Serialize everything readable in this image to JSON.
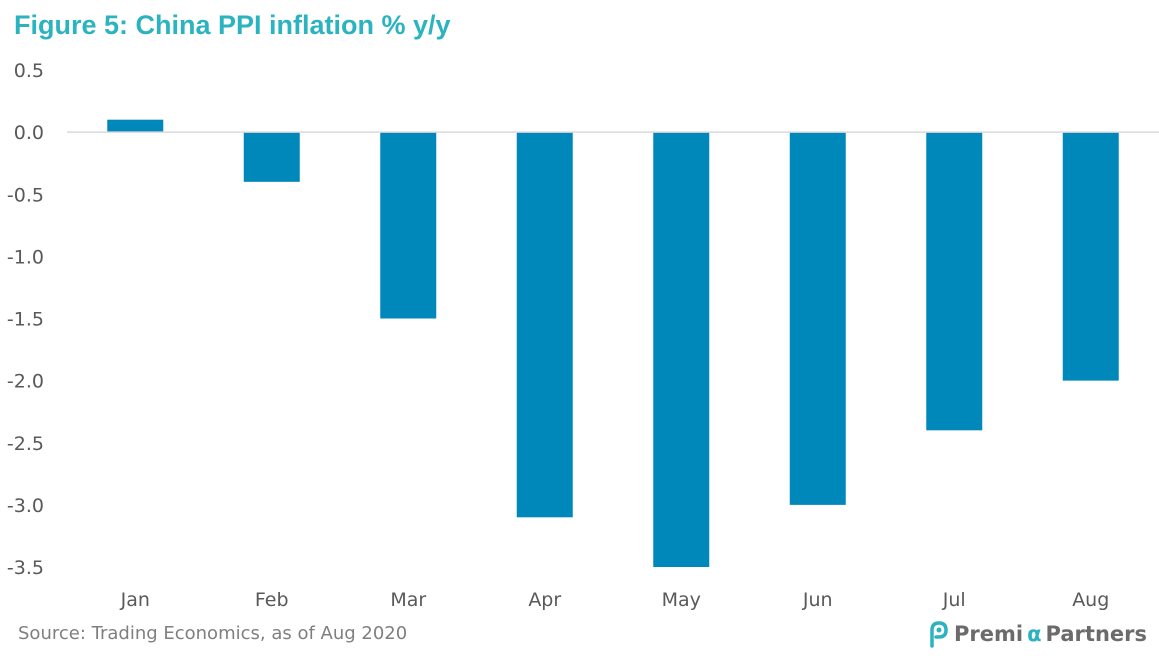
{
  "title": "Figure 5: China PPI inflation % y/y",
  "source": "Source: Trading Economics, as of Aug 2020",
  "logo": {
    "text_pre": "Premi",
    "text_alpha": "α",
    "text_post": " Partners",
    "icon": "premia-logo-mark"
  },
  "colors": {
    "bar": "#0088BB",
    "title": "#2BB3C0",
    "axis": "#D9D9D9"
  },
  "chart_data": {
    "type": "bar",
    "title": "Figure 5: China PPI inflation % y/y",
    "categories": [
      "Jan",
      "Feb",
      "Mar",
      "Apr",
      "May",
      "Jun",
      "Jul",
      "Aug"
    ],
    "values": [
      0.1,
      -0.4,
      -1.5,
      -3.1,
      -3.5,
      -3.0,
      -2.4,
      -2.0
    ],
    "yticks": [
      "0.5",
      "0.0",
      "-0.5",
      "-1.0",
      "-1.5",
      "-2.0",
      "-2.5",
      "-3.0",
      "-3.5"
    ],
    "ylim": [
      -3.5,
      0.5
    ],
    "xlabel": "",
    "ylabel": "",
    "grid": false,
    "legend": "none"
  }
}
